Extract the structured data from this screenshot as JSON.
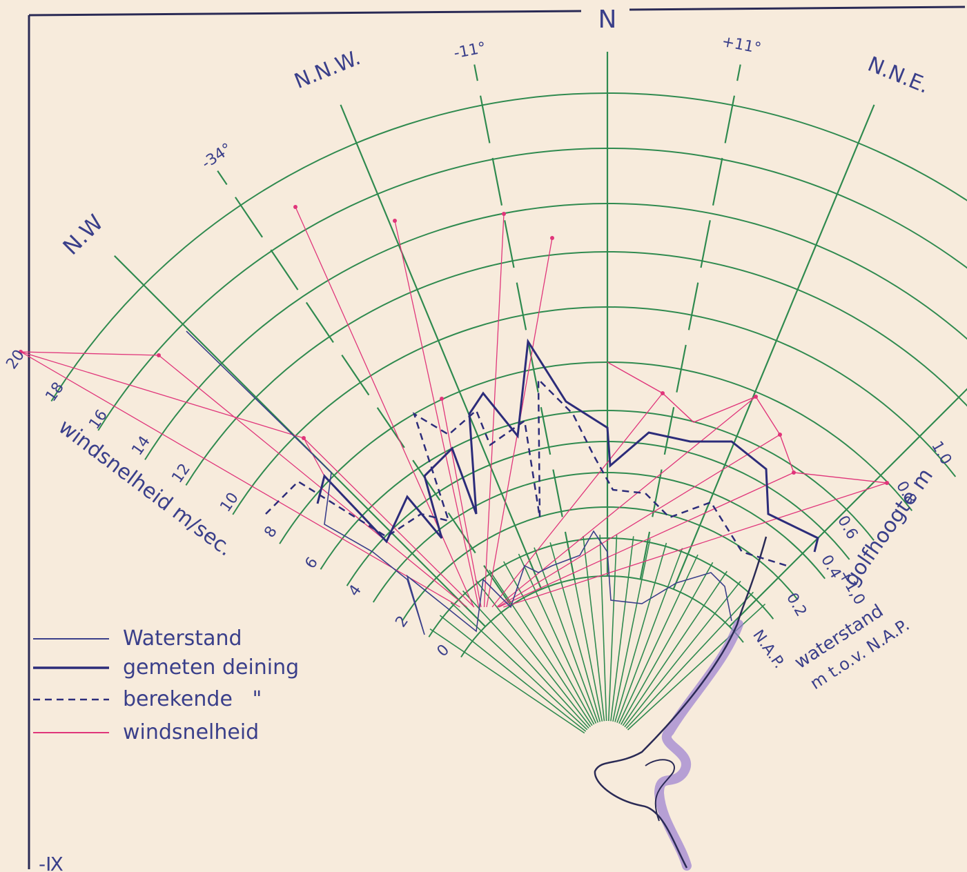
{
  "colors": {
    "paper": "#f7ebdc",
    "grid": "#2f8a4f",
    "waterstand": "#3a3f8a",
    "deining": "#2c2c7a",
    "wind": "#e0357a",
    "coast": "#9a7fd0",
    "ink": "#2a2a55"
  },
  "diagram": {
    "north_label": "N",
    "directions": [
      "N.W",
      "N.N.W.",
      "N",
      "N.N.E."
    ],
    "angle_labels": [
      "-34°",
      "-11°",
      "+11°"
    ],
    "wind_ticks": [
      "2",
      "4",
      "6",
      "8",
      "10",
      "12",
      "14",
      "16",
      "18",
      "20"
    ],
    "wind_axis_label": "windsnelheid m/sec.",
    "wave_ticks": [
      "0.2",
      "0.4",
      "0.6",
      "0.8",
      "1.0"
    ],
    "wave_axis_label": "golfhoogte m",
    "water_ticks": [
      "N.A.P.",
      "+1,0"
    ],
    "water_axis_label_1": "waterstand",
    "water_axis_label_2": "m t.o.v. N.A.P.",
    "stray_tick": "0"
  },
  "legend": {
    "items": [
      {
        "label": "Waterstand",
        "style": "solid-thin",
        "color": "#3a3f8a"
      },
      {
        "label": "gemeten deining",
        "style": "solid-thick",
        "color": "#2c2c7a"
      },
      {
        "label": "berekende   \"",
        "style": "dashed",
        "color": "#2c2c7a"
      },
      {
        "label": "windsnelheid",
        "style": "solid-thin",
        "color": "#e0357a"
      }
    ]
  },
  "corner_mark": "-Ⅸ"
}
